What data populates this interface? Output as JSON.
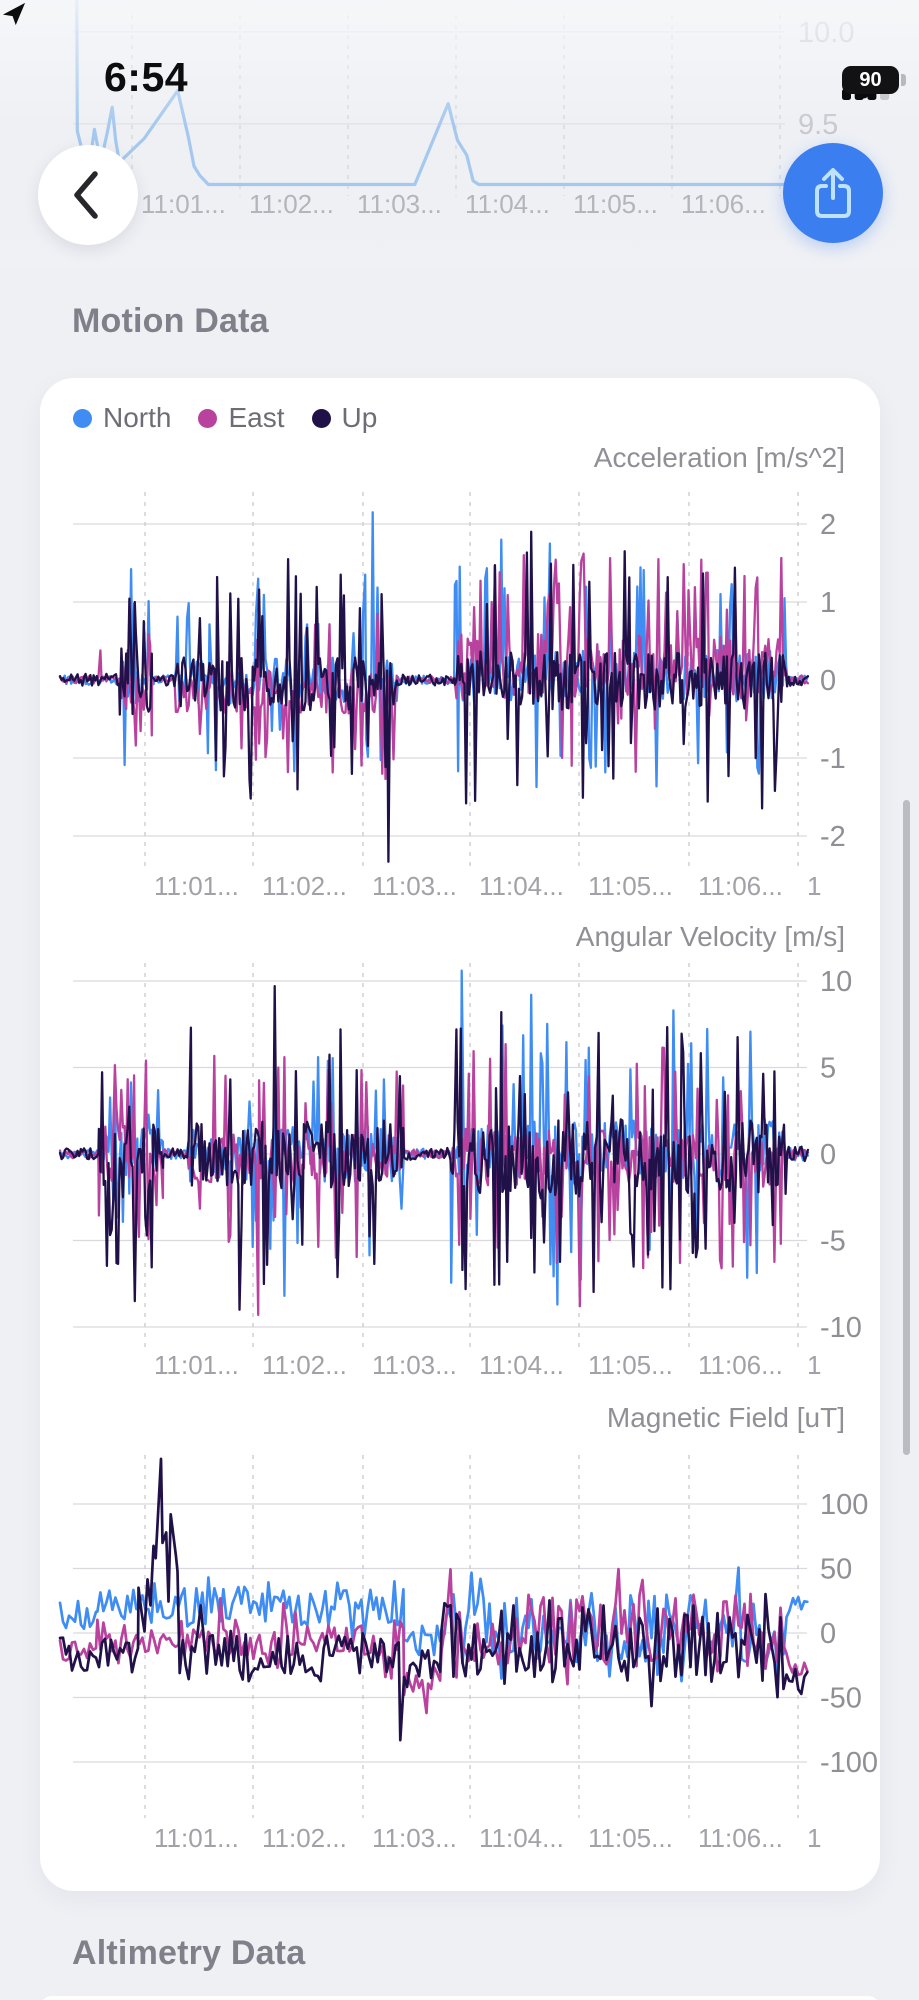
{
  "status_bar": {
    "time": "6:54",
    "battery_percent": "90"
  },
  "sections": {
    "motion_title": "Motion Data",
    "altimetry_title": "Altimetry Data"
  },
  "legend": [
    {
      "label": "North",
      "color": "#3f8cf2"
    },
    {
      "label": "East",
      "color": "#b8429e"
    },
    {
      "label": "Up",
      "color": "#211149"
    }
  ],
  "colors": {
    "background": "#f0f1f5",
    "card": "#ffffff",
    "series_north": "#3f8cf2",
    "series_east": "#b8429e",
    "series_up": "#211149",
    "share_button": "#3b7ef0",
    "top_preview_line": "#a5c8ef"
  },
  "chart_data": [
    {
      "type": "line",
      "title": "",
      "note": "partial previous chart visible behind status bar",
      "y_ticks": [
        "10.0",
        "9.5"
      ],
      "x_ticks": [
        "11:01...",
        "11:02...",
        "11:03...",
        "11:04...",
        "11:05...",
        "11:06...",
        ""
      ],
      "ylim": [
        9.1,
        10.05
      ],
      "series": [
        {
          "name": "value",
          "color": "#a5c8ef",
          "points": [
            [
              0.004,
              11.5
            ],
            [
              0.006,
              9.46
            ],
            [
              0.012,
              9.37
            ],
            [
              0.018,
              9.33
            ],
            [
              0.024,
              9.3
            ],
            [
              0.03,
              9.47
            ],
            [
              0.035,
              9.37
            ],
            [
              0.04,
              9.31
            ],
            [
              0.048,
              9.45
            ],
            [
              0.055,
              9.59
            ],
            [
              0.06,
              9.41
            ],
            [
              0.065,
              9.29
            ],
            [
              0.1,
              9.42
            ],
            [
              0.147,
              9.68
            ],
            [
              0.162,
              9.43
            ],
            [
              0.17,
              9.27
            ],
            [
              0.178,
              9.22
            ],
            [
              0.19,
              9.17
            ],
            [
              0.48,
              9.17
            ],
            [
              0.527,
              9.61
            ],
            [
              0.534,
              9.5
            ],
            [
              0.54,
              9.41
            ],
            [
              0.553,
              9.33
            ],
            [
              0.562,
              9.19
            ],
            [
              0.57,
              9.17
            ],
            [
              1.0,
              9.17
            ]
          ]
        }
      ]
    },
    {
      "type": "line",
      "title": "Acceleration [m/s^2]",
      "y_ticks": [
        "2",
        "1",
        "0",
        "-1",
        "-2"
      ],
      "x_ticks": [
        "11:01...",
        "11:02...",
        "11:03...",
        "11:04...",
        "11:05...",
        "11:06...",
        "1"
      ],
      "ylim": [
        -2.45,
        2.45
      ],
      "series": [
        {
          "name": "North",
          "color": "#3f8cf2",
          "seed": 101,
          "segments": [
            [
              0,
              0.08,
              0.06,
              0,
              0,
              0,
              0.5
            ],
            [
              0.08,
              0.123,
              0.35,
              0,
              1.2,
              0.22,
              0.6
            ],
            [
              0.123,
              0.155,
              0.06,
              0,
              0,
              0,
              0.5
            ],
            [
              0.155,
              0.452,
              0.3,
              0,
              1.2,
              0.12,
              0.5
            ],
            [
              0.452,
              0.528,
              0.055,
              0,
              0,
              0,
              0.5
            ],
            [
              0.528,
              0.972,
              0.34,
              0.05,
              1.45,
              0.13,
              0.62
            ],
            [
              0.972,
              1,
              0.07,
              0,
              0,
              0,
              0.5
            ]
          ],
          "peaks": [
            [
              0.418,
              2.15
            ],
            [
              0.408,
              1.35
            ],
            [
              0.095,
              1.42
            ],
            [
              0.59,
              1.8
            ],
            [
              0.655,
              1.75
            ],
            [
              0.265,
              1.3
            ]
          ]
        },
        {
          "name": "East",
          "color": "#b8429e",
          "seed": 202,
          "segments": [
            [
              0,
              0.08,
              0.05,
              0,
              0,
              0,
              0.5
            ],
            [
              0.08,
              0.123,
              0.3,
              -0.1,
              0.9,
              0.3,
              0.25
            ],
            [
              0.123,
              0.155,
              0.05,
              0,
              0,
              0,
              0.5
            ],
            [
              0.155,
              0.452,
              0.28,
              -0.15,
              1.15,
              0.16,
              0.2
            ],
            [
              0.452,
              0.528,
              0.05,
              0,
              0,
              0,
              0.5
            ],
            [
              0.528,
              0.972,
              0.42,
              0.18,
              1.4,
              0.22,
              0.78
            ],
            [
              0.972,
              1,
              0.06,
              0,
              0,
              0,
              0.5
            ]
          ],
          "peaks": [
            [
              0.054,
              0.38
            ],
            [
              0.7,
              1.62
            ],
            [
              0.8,
              1.55
            ],
            [
              0.62,
              1.6
            ]
          ]
        },
        {
          "name": "Up",
          "color": "#211149",
          "seed": 303,
          "segments": [
            [
              0,
              0.08,
              0.08,
              0,
              0,
              0,
              0.5
            ],
            [
              0.08,
              0.123,
              0.45,
              0,
              1.05,
              0.3,
              0.5
            ],
            [
              0.123,
              0.155,
              0.08,
              0,
              0,
              0,
              0.5
            ],
            [
              0.155,
              0.452,
              0.34,
              -0.05,
              1.5,
              0.17,
              0.48
            ],
            [
              0.452,
              0.528,
              0.07,
              0,
              0,
              0,
              0.5
            ],
            [
              0.528,
              0.972,
              0.38,
              0,
              1.65,
              0.15,
              0.55
            ],
            [
              0.972,
              1,
              0.09,
              0,
              0,
              0,
              0.5
            ]
          ],
          "peaks": [
            [
              0.1,
              1.0
            ],
            [
              0.21,
              1.32
            ],
            [
              0.255,
              -1.52
            ],
            [
              0.305,
              1.55
            ],
            [
              0.43,
              1.1
            ],
            [
              0.439,
              -2.33
            ],
            [
              0.63,
              1.9
            ],
            [
              0.755,
              1.65
            ],
            [
              0.555,
              -1.55
            ]
          ]
        }
      ]
    },
    {
      "type": "line",
      "title": "Angular Velocity [m/s]",
      "y_ticks": [
        "10",
        "5",
        "0",
        "-5",
        "-10"
      ],
      "x_ticks": [
        "11:01...",
        "11:02...",
        "11:03...",
        "11:04...",
        "11:05...",
        "11:06...",
        "1"
      ],
      "ylim": [
        -10.8,
        11.2
      ],
      "series": [
        {
          "name": "North",
          "color": "#3f8cf2",
          "seed": 404,
          "segments": [
            [
              0,
              0.052,
              0.25,
              0,
              0,
              0,
              0.5
            ],
            [
              0.052,
              0.138,
              1.6,
              0,
              5.0,
              0.22,
              0.65
            ],
            [
              0.138,
              0.172,
              0.3,
              0,
              0,
              0,
              0.5
            ],
            [
              0.172,
              0.46,
              1.6,
              0,
              6.4,
              0.15,
              0.5
            ],
            [
              0.46,
              0.523,
              0.3,
              0,
              0,
              0,
              0.5
            ],
            [
              0.523,
              0.972,
              1.8,
              0.2,
              8.2,
              0.16,
              0.55
            ],
            [
              0.972,
              1,
              0.4,
              0,
              0,
              0,
              0.5
            ]
          ],
          "peaks": [
            [
              0.537,
              10.6
            ],
            [
              0.63,
              9.2
            ],
            [
              0.665,
              -8.7
            ],
            [
              0.82,
              8.3
            ],
            [
              0.345,
              5.6
            ],
            [
              0.3,
              -8.2
            ]
          ]
        },
        {
          "name": "East",
          "color": "#b8429e",
          "seed": 505,
          "segments": [
            [
              0,
              0.052,
              0.25,
              0,
              0,
              0,
              0.5
            ],
            [
              0.052,
              0.138,
              1.7,
              0,
              5.2,
              0.26,
              0.55
            ],
            [
              0.138,
              0.172,
              0.25,
              0,
              0,
              0,
              0.5
            ],
            [
              0.172,
              0.46,
              1.5,
              -0.3,
              6.0,
              0.17,
              0.35
            ],
            [
              0.46,
              0.523,
              0.25,
              0,
              0,
              0,
              0.5
            ],
            [
              0.523,
              0.972,
              1.7,
              -0.2,
              6.6,
              0.19,
              0.45
            ],
            [
              0.972,
              1,
              0.3,
              0,
              0,
              0,
              0.5
            ]
          ],
          "peaks": [
            [
              0.265,
              -9.3
            ],
            [
              0.3,
              5.6
            ],
            [
              0.695,
              -8.8
            ],
            [
              0.575,
              5.5
            ],
            [
              0.115,
              5.4
            ]
          ]
        },
        {
          "name": "Up",
          "color": "#211149",
          "seed": 606,
          "segments": [
            [
              0,
              0.052,
              0.35,
              0,
              0,
              0,
              0.5
            ],
            [
              0.052,
              0.138,
              2.2,
              -0.5,
              6.8,
              0.28,
              0.35
            ],
            [
              0.138,
              0.172,
              0.35,
              0,
              0,
              0,
              0.5
            ],
            [
              0.172,
              0.46,
              2.0,
              0,
              7.6,
              0.19,
              0.5
            ],
            [
              0.46,
              0.523,
              0.35,
              0,
              0,
              0,
              0.5
            ],
            [
              0.523,
              0.972,
              2.3,
              -0.3,
              7.8,
              0.19,
              0.45
            ],
            [
              0.972,
              1,
              0.45,
              0,
              0,
              0,
              0.5
            ]
          ],
          "peaks": [
            [
              0.287,
              9.7
            ],
            [
              0.175,
              7.3
            ],
            [
              0.375,
              7.2
            ],
            [
              0.59,
              8.2
            ],
            [
              0.53,
              7.2
            ],
            [
              0.72,
              7.0
            ],
            [
              0.24,
              -9.0
            ],
            [
              0.1,
              -8.5
            ]
          ]
        }
      ]
    },
    {
      "type": "line",
      "title": "Magnetic Field [uT]",
      "y_ticks": [
        "100",
        "50",
        "0",
        "-50",
        "-100"
      ],
      "x_ticks": [
        "11:01...",
        "11:02...",
        "11:03...",
        "11:04...",
        "11:05...",
        "11:06...",
        "1"
      ],
      "ylim": [
        -115,
        150
      ],
      "series": [
        {
          "name": "North",
          "color": "#3f8cf2",
          "seed": 707,
          "segments": [
            [
              0,
              0.05,
              12,
              15,
              0,
              0,
              0.5
            ],
            [
              0.05,
              0.46,
              15,
              20,
              27,
              0.1,
              0.78
            ],
            [
              0.46,
              0.51,
              12,
              -6,
              0,
              0,
              0.5
            ],
            [
              0.51,
              0.975,
              28,
              4,
              48,
              0.1,
              0.52
            ],
            [
              0.975,
              1,
              8,
              24,
              0,
              0,
              0.5
            ]
          ],
          "peaks": [
            [
              0.98,
              27
            ]
          ]
        },
        {
          "name": "East",
          "color": "#b8429e",
          "seed": 808,
          "segments": [
            [
              0,
              0.05,
              13,
              -16,
              0,
              0,
              0.5
            ],
            [
              0.05,
              0.46,
              15,
              -5,
              32,
              0.08,
              0.6
            ],
            [
              0.46,
              0.51,
              12,
              -38,
              0,
              0,
              0.4
            ],
            [
              0.51,
              0.975,
              28,
              2,
              50,
              0.09,
              0.55
            ],
            [
              0.975,
              1,
              9,
              -27,
              0,
              0,
              0.5
            ]
          ],
          "peaks": [
            [
              0.49,
              -62
            ]
          ]
        },
        {
          "name": "Up",
          "color": "#211149",
          "seed": 909,
          "segments": [
            [
              0,
              0.105,
              15,
              -18,
              0,
              0,
              0.5
            ],
            [
              0.105,
              0.125,
              25,
              25,
              0,
              0,
              0.7
            ],
            [
              0.125,
              0.16,
              25,
              45,
              0,
              0,
              0.5
            ],
            [
              0.16,
              0.46,
              20,
              -18,
              40,
              0.06,
              0.4
            ],
            [
              0.46,
              0.51,
              16,
              -26,
              0,
              0,
              0.5
            ],
            [
              0.51,
              0.975,
              30,
              -8,
              52,
              0.08,
              0.5
            ],
            [
              0.975,
              1,
              12,
              -38,
              0,
              0,
              0.5
            ]
          ],
          "peaks": [
            [
              0.128,
              58
            ],
            [
              0.135,
              135
            ],
            [
              0.142,
              78
            ],
            [
              0.148,
              92
            ],
            [
              0.155,
              60
            ],
            [
              0.455,
              -83
            ]
          ]
        }
      ]
    }
  ]
}
